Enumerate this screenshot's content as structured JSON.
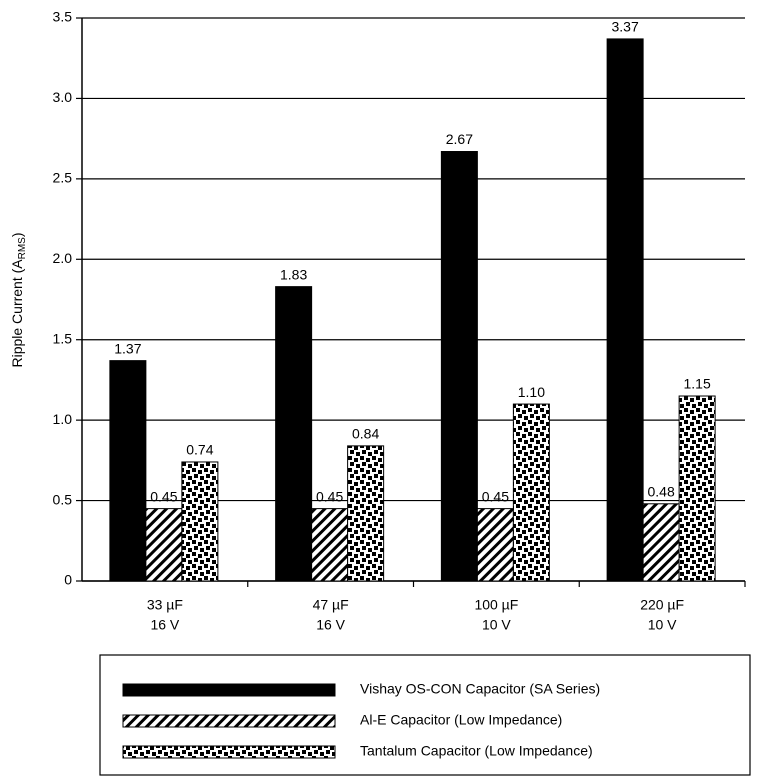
{
  "chart_data": {
    "type": "bar",
    "y_label": [
      "Ripple Current (A",
      "RMS",
      ")"
    ],
    "categories": [
      [
        "33 µF",
        "16 V"
      ],
      [
        "47 µF",
        "16 V"
      ],
      [
        "100 µF",
        "10 V"
      ],
      [
        "220 µF",
        "10 V"
      ]
    ],
    "series": [
      {
        "name": "Vishay OS-CON Capacitor (SA Series)",
        "color": "#000000",
        "pattern": "solid",
        "values": [
          1.37,
          1.83,
          2.67,
          3.37
        ]
      },
      {
        "name": "Al-E Capacitor (Low Impedance)",
        "color": "#000000",
        "pattern": "diagonal",
        "values": [
          0.45,
          0.45,
          0.45,
          0.48
        ]
      },
      {
        "name": "Tantalum Capacitor (Low Impedance)",
        "color": "#000000",
        "pattern": "checker",
        "values": [
          0.74,
          0.84,
          1.1,
          1.15
        ],
        "value_labels": [
          "0.74",
          "0.84",
          "1.10",
          "1.15"
        ]
      }
    ],
    "ylim": [
      0,
      3.5
    ],
    "yticks": [
      0,
      0.5,
      {
        "value": 1,
        "label": "1.0"
      },
      1.5,
      {
        "value": 2,
        "label": "2.0"
      },
      2.5,
      {
        "value": 3,
        "label": "3.0"
      },
      3.5
    ],
    "grid": true,
    "legend": "bottom"
  }
}
